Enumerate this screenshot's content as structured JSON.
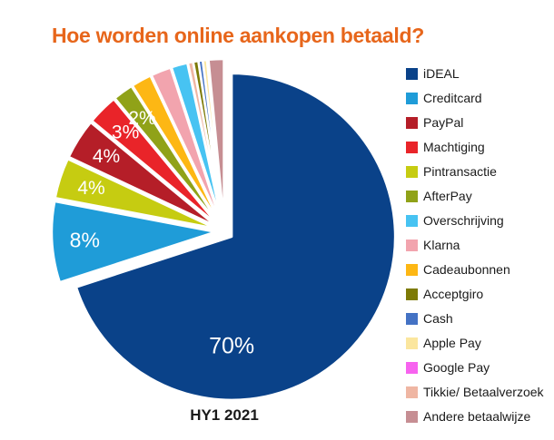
{
  "title": "Hoe worden online aankopen betaald?",
  "period_label": "HY1 2021",
  "colors": {
    "background": "#ffffff",
    "title_text": "#e7661b",
    "slice_label_text": "#ffffff",
    "legend_text": "#1a1a1a"
  },
  "legend": {
    "position": "right",
    "items": [
      {
        "label": "iDEAL",
        "color": "#0a4289"
      },
      {
        "label": "Creditcard",
        "color": "#1f9cd8"
      },
      {
        "label": "PayPal",
        "color": "#b51e28"
      },
      {
        "label": "Machtiging",
        "color": "#e92429"
      },
      {
        "label": "Pintransactie",
        "color": "#c6cc11"
      },
      {
        "label": "AfterPay",
        "color": "#90a218"
      },
      {
        "label": "Overschrijving",
        "color": "#47c3f2"
      },
      {
        "label": "Klarna",
        "color": "#f2a4ae"
      },
      {
        "label": "Cadeaubonnen",
        "color": "#fdb714"
      },
      {
        "label": "Acceptgiro",
        "color": "#7d7a06"
      },
      {
        "label": "Cash",
        "color": "#4472c4"
      },
      {
        "label": "Apple Pay",
        "color": "#fbe69e"
      },
      {
        "label": "Google Pay",
        "color": "#f763ef"
      },
      {
        "label": "Tikkie/ Betaalverzoek",
        "color": "#efb6a3"
      },
      {
        "label": "Andere betaalwijze",
        "color": "#c68e93"
      }
    ]
  },
  "chart_data": {
    "type": "pie",
    "title": "Hoe worden online aankopen betaald?",
    "caption": "HY1 2021",
    "legend_position": "right",
    "start_angle_deg": 0,
    "direction": "clockwise",
    "exploded": true,
    "labels_shown_for_values_gte": 2,
    "note": "values without a visible data label are estimated from arc angles",
    "slices": [
      {
        "label": "iDEAL",
        "value": 70,
        "display": "70%",
        "color": "#0a4289"
      },
      {
        "label": "Creditcard",
        "value": 8,
        "display": "8%",
        "color": "#1f9cd8"
      },
      {
        "label": "Pintransactie",
        "value": 4,
        "display": "4%",
        "color": "#c6cc11"
      },
      {
        "label": "PayPal",
        "value": 4,
        "display": "4%",
        "color": "#b51e28"
      },
      {
        "label": "Machtiging",
        "value": 3,
        "display": "3%",
        "color": "#e92429"
      },
      {
        "label": "AfterPay",
        "value": 2,
        "display": "2%",
        "color": "#90a218"
      },
      {
        "label": "Cadeaubonnen",
        "value": 2,
        "display": null,
        "color": "#fdb714"
      },
      {
        "label": "Klarna",
        "value": 2,
        "display": null,
        "color": "#f2a4ae"
      },
      {
        "label": "Overschrijving",
        "value": 1.6,
        "display": null,
        "color": "#47c3f2"
      },
      {
        "label": "Tikkie/ Betaalverzoek",
        "value": 0.5,
        "display": null,
        "color": "#efb6a3"
      },
      {
        "label": "Acceptgiro",
        "value": 0.5,
        "display": null,
        "color": "#7d7a06"
      },
      {
        "label": "Cash",
        "value": 0.4,
        "display": null,
        "color": "#4472c4"
      },
      {
        "label": "Apple Pay",
        "value": 0.4,
        "display": null,
        "color": "#fbe69e"
      },
      {
        "label": "Google Pay",
        "value": 0.1,
        "display": null,
        "color": "#f763ef"
      },
      {
        "label": "Andere betaalwijze",
        "value": 1.5,
        "display": null,
        "color": "#c68e93"
      }
    ]
  }
}
